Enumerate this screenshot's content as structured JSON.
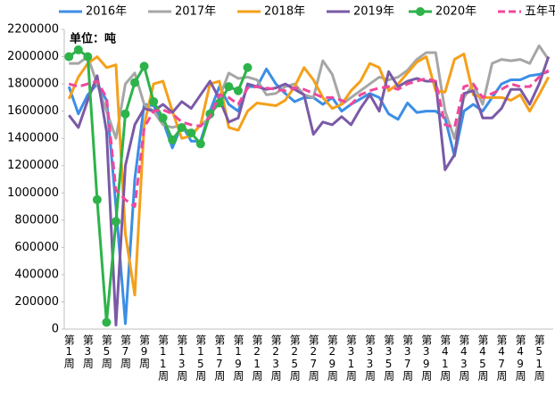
{
  "chart_data": {
    "type": "line",
    "annotation": "单位：吨",
    "categories": [
      "第1周",
      null,
      "第3周",
      null,
      "第5周",
      null,
      "第7周",
      null,
      "第9周",
      null,
      "第11周",
      null,
      "第13周",
      null,
      "第15周",
      null,
      "第17周",
      null,
      "第19周",
      null,
      "第21周",
      null,
      "第23周",
      null,
      "第25周",
      null,
      "第27周",
      null,
      "第29周",
      null,
      "第31周",
      null,
      "第33周",
      null,
      "第35周",
      null,
      "第37周",
      null,
      "第39周",
      null,
      "第41周",
      null,
      "第43周",
      null,
      "第45周",
      null,
      "第47周",
      null,
      "第49周",
      null,
      "第51周",
      null
    ],
    "ylim": [
      0,
      2200000
    ],
    "yticks": [
      0,
      200000,
      400000,
      600000,
      800000,
      1000000,
      1200000,
      1400000,
      1600000,
      1800000,
      2000000,
      2200000
    ],
    "grid": false,
    "legend": "top",
    "series": [
      {
        "name": "2016年",
        "color": "#3c8ee6",
        "dashed": false,
        "markers": false,
        "values": [
          1780000,
          1580000,
          1720000,
          1800000,
          1680000,
          900000,
          40000,
          1100000,
          1650000,
          1640000,
          1530000,
          1330000,
          1500000,
          1380000,
          1380000,
          1600000,
          1780000,
          1650000,
          1600000,
          1780000,
          1780000,
          1910000,
          1800000,
          1730000,
          1670000,
          1700000,
          1700000,
          1650000,
          1700000,
          1600000,
          1650000,
          1690000,
          1730000,
          1700000,
          1580000,
          1540000,
          1660000,
          1590000,
          1600000,
          1600000,
          1550000,
          1270000,
          1600000,
          1650000,
          1600000,
          1700000,
          1800000,
          1830000,
          1830000,
          1860000,
          1870000,
          1890000
        ]
      },
      {
        "name": "2017年",
        "color": "#a6a6a6",
        "dashed": false,
        "markers": false,
        "values": [
          1950000,
          1950000,
          2000000,
          1800000,
          1600000,
          1400000,
          1800000,
          1880000,
          1650000,
          1600000,
          1500000,
          1480000,
          1500000,
          1420000,
          1500000,
          1550000,
          1700000,
          1880000,
          1840000,
          1850000,
          1830000,
          1720000,
          1730000,
          1780000,
          1800000,
          1720000,
          1700000,
          1970000,
          1870000,
          1650000,
          1700000,
          1750000,
          1800000,
          1850000,
          1830000,
          1850000,
          1900000,
          1980000,
          2030000,
          2030000,
          1600000,
          1400000,
          1700000,
          1800000,
          1650000,
          1950000,
          1980000,
          1970000,
          1980000,
          1950000,
          2080000,
          1980000
        ]
      },
      {
        "name": "2018年",
        "color": "#f5a01a",
        "dashed": false,
        "markers": false,
        "values": [
          1690000,
          1850000,
          1950000,
          2000000,
          1920000,
          1940000,
          700000,
          250000,
          1500000,
          1800000,
          1820000,
          1600000,
          1400000,
          1420000,
          1500000,
          1800000,
          1820000,
          1480000,
          1460000,
          1600000,
          1660000,
          1650000,
          1640000,
          1680000,
          1780000,
          1920000,
          1830000,
          1700000,
          1620000,
          1650000,
          1750000,
          1820000,
          1950000,
          1920000,
          1750000,
          1800000,
          1880000,
          1960000,
          2000000,
          1750000,
          1740000,
          1980000,
          2020000,
          1720000,
          1700000,
          1700000,
          1700000,
          1680000,
          1720000,
          1600000,
          1720000,
          1850000
        ]
      },
      {
        "name": "2019年",
        "color": "#7a5aa6",
        "dashed": false,
        "markers": false,
        "values": [
          1570000,
          1480000,
          1680000,
          1860000,
          1450000,
          30000,
          1200000,
          1500000,
          1620000,
          1600000,
          1650000,
          1590000,
          1670000,
          1620000,
          1720000,
          1820000,
          1690000,
          1520000,
          1550000,
          1800000,
          1780000,
          1760000,
          1770000,
          1800000,
          1760000,
          1720000,
          1430000,
          1520000,
          1500000,
          1560000,
          1500000,
          1620000,
          1720000,
          1600000,
          1890000,
          1780000,
          1820000,
          1840000,
          1820000,
          1820000,
          1170000,
          1280000,
          1730000,
          1750000,
          1550000,
          1550000,
          1620000,
          1760000,
          1760000,
          1650000,
          1800000,
          2000000
        ]
      },
      {
        "name": "2020年",
        "color": "#2db34a",
        "dashed": false,
        "markers": true,
        "values": [
          2000000,
          2050000,
          2000000,
          950000,
          50000,
          790000,
          1580000,
          1810000,
          1930000,
          1670000,
          1550000,
          1390000,
          1480000,
          1440000,
          1360000,
          1580000,
          1660000,
          1780000,
          1750000,
          1920000,
          null,
          null,
          null,
          null,
          null,
          null,
          null,
          null,
          null,
          null,
          null,
          null,
          null,
          null,
          null,
          null,
          null,
          null,
          null,
          null,
          null,
          null,
          null,
          null,
          null,
          null,
          null,
          null,
          null,
          null,
          null,
          null
        ]
      },
      {
        "name": "五年平均",
        "color": "#f0489c",
        "dashed": true,
        "markers": false,
        "values": [
          1800000,
          1780000,
          1800000,
          1820000,
          1700000,
          1020000,
          950000,
          900000,
          1480000,
          1600000,
          1610000,
          1580000,
          1520000,
          1500000,
          1490000,
          1560000,
          1720000,
          1700000,
          1650000,
          1770000,
          1780000,
          1770000,
          1760000,
          1750000,
          1770000,
          1760000,
          1730000,
          1700000,
          1700000,
          1680000,
          1650000,
          1720000,
          1750000,
          1770000,
          1780000,
          1760000,
          1800000,
          1820000,
          1840000,
          1820000,
          1500000,
          1480000,
          1780000,
          1800000,
          1700000,
          1730000,
          1760000,
          1800000,
          1780000,
          1780000,
          1850000,
          1900000
        ]
      }
    ]
  }
}
